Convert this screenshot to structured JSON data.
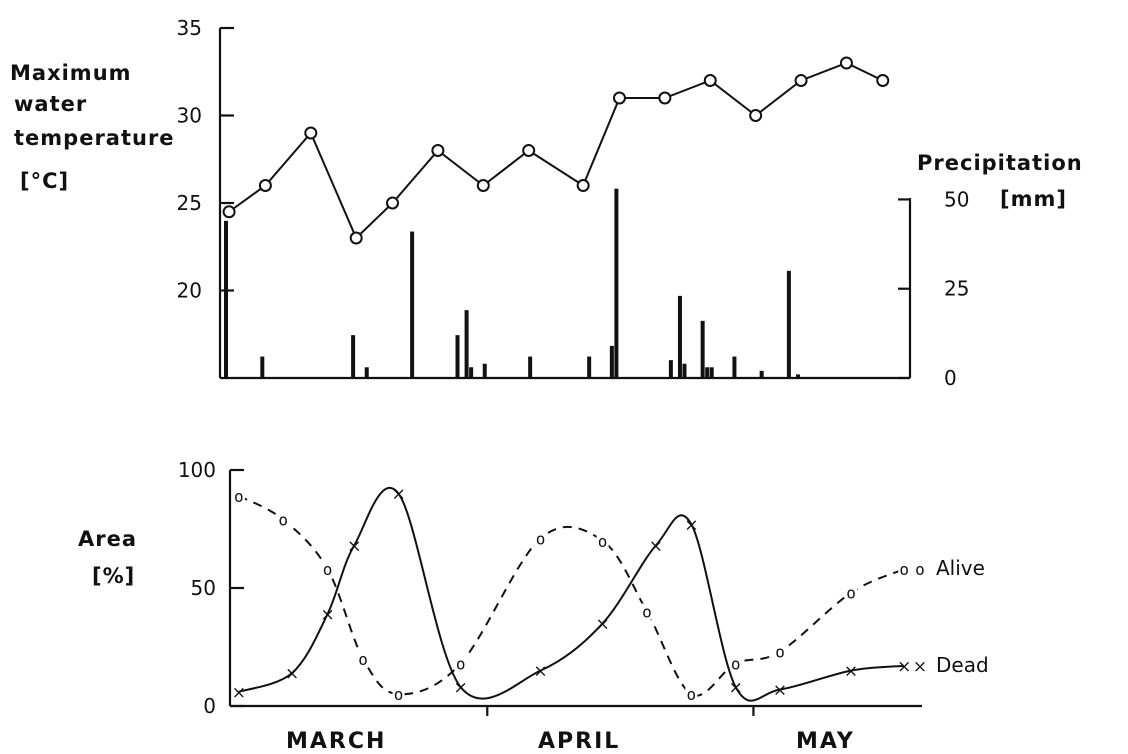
{
  "chart_data": [
    {
      "type": "line",
      "ylabel": [
        "Maximum",
        "water",
        "temperature",
        "[°C]"
      ],
      "ylim": [
        15,
        35
      ],
      "yticks": [
        20,
        25,
        30,
        35
      ],
      "x": [
        1,
        5,
        10,
        15,
        19,
        24,
        29,
        34,
        40,
        44,
        49,
        54,
        59,
        64,
        69,
        73
      ],
      "values": [
        24.5,
        26,
        29,
        23,
        25,
        28,
        26,
        28,
        26,
        31,
        31,
        32,
        30,
        32,
        33,
        32
      ],
      "marker": "circle"
    },
    {
      "type": "bar",
      "ylabel": "Precipitation",
      "unit": "[mm]",
      "ylim": [
        0,
        70
      ],
      "yticks": [
        0,
        25,
        50
      ],
      "axis_side": "right",
      "x": [
        0,
        4,
        14,
        15.5,
        20.5,
        25.5,
        26.5,
        27,
        28.5,
        33.5,
        40,
        42.5,
        43,
        49,
        50,
        50.5,
        52.5,
        53,
        53.5,
        56,
        59,
        62,
        63
      ],
      "values": [
        44,
        6,
        12,
        3,
        41,
        12,
        19,
        3,
        4,
        6,
        6,
        9,
        53,
        5,
        23,
        4,
        16,
        3,
        3,
        6,
        2,
        30,
        1
      ]
    },
    {
      "type": "line",
      "ylabel": [
        "Area",
        "[%]"
      ],
      "ylim": [
        0,
        100
      ],
      "yticks": [
        0,
        50,
        100
      ],
      "xlabels": [
        "MARCH",
        "APRIL",
        "MAY"
      ],
      "series": [
        {
          "name": "Alive",
          "style": "dashed",
          "marker": "o",
          "x": [
            1,
            6,
            11,
            15,
            19,
            26,
            35,
            42,
            47,
            52,
            57,
            62,
            70,
            76
          ],
          "values": [
            89,
            79,
            58,
            20,
            5,
            18,
            71,
            70,
            40,
            5,
            18,
            23,
            48,
            58
          ]
        },
        {
          "name": "Dead",
          "style": "solid",
          "marker": "x",
          "x": [
            1,
            7,
            11,
            14,
            19,
            26,
            35,
            42,
            48,
            52,
            57,
            62,
            70,
            76
          ],
          "values": [
            6,
            14,
            39,
            68,
            90,
            8,
            15,
            35,
            68,
            77,
            8,
            7,
            15,
            17
          ]
        }
      ]
    }
  ]
}
